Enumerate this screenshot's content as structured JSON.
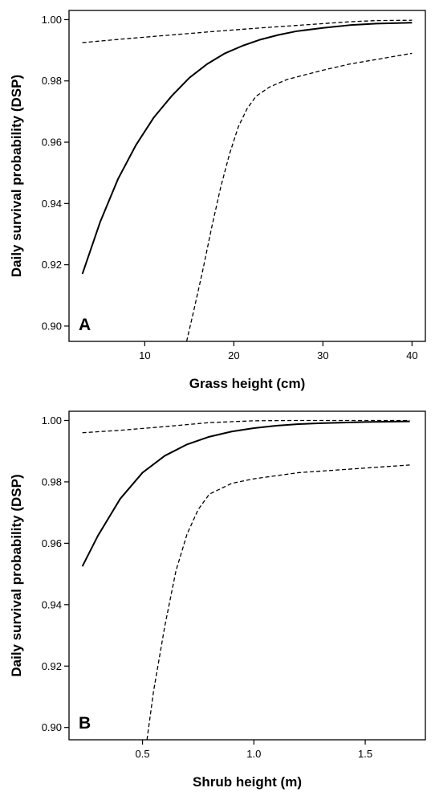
{
  "chart_data": [
    {
      "type": "line",
      "panel_label": "A",
      "xlabel": "Grass height (cm)",
      "ylabel": "Daily survival probability (DSP)",
      "xlim": [
        1.5,
        41.5
      ],
      "ylim": [
        0.895,
        1.003
      ],
      "xticks": [
        10,
        20,
        30,
        40
      ],
      "xtick_labels": [
        "10",
        "20",
        "30",
        "40"
      ],
      "yticks": [
        0.9,
        0.92,
        0.94,
        0.96,
        0.98,
        1.0
      ],
      "ytick_labels": [
        "0.90",
        "0.92",
        "0.94",
        "0.96",
        "0.98",
        "1.00"
      ],
      "grid": false,
      "series": [
        {
          "style": "solid",
          "x": [
            3,
            5,
            7,
            9,
            11,
            13,
            15,
            17,
            19,
            21,
            23,
            25,
            27,
            30,
            33,
            36,
            40
          ],
          "y": [
            0.917,
            0.934,
            0.948,
            0.959,
            0.968,
            0.975,
            0.981,
            0.9855,
            0.989,
            0.9915,
            0.9935,
            0.995,
            0.9962,
            0.9973,
            0.9982,
            0.9987,
            0.999
          ]
        },
        {
          "style": "dashed",
          "x": [
            3,
            8,
            13,
            18,
            23,
            28,
            33,
            36,
            40
          ],
          "y": [
            0.9925,
            0.9938,
            0.995,
            0.9962,
            0.9973,
            0.9983,
            0.9993,
            0.9997,
            0.9998
          ]
        },
        {
          "style": "dashed",
          "x": [
            14.7,
            15.5,
            16.5,
            17.5,
            18.5,
            19.5,
            20.5,
            21.5,
            22.5,
            24,
            26,
            28,
            30,
            33,
            36,
            40
          ],
          "y": [
            0.895,
            0.905,
            0.918,
            0.932,
            0.945,
            0.956,
            0.965,
            0.971,
            0.975,
            0.978,
            0.9805,
            0.982,
            0.9835,
            0.9855,
            0.987,
            0.989
          ]
        }
      ]
    },
    {
      "type": "line",
      "panel_label": "B",
      "xlabel": "Shrub height (m)",
      "ylabel": "Daily survival probability (DSP)",
      "xlim": [
        0.17,
        1.77
      ],
      "ylim": [
        0.896,
        1.003
      ],
      "xticks": [
        0.5,
        1.0,
        1.5
      ],
      "xtick_labels": [
        "0.5",
        "1.0",
        "1.5"
      ],
      "yticks": [
        0.9,
        0.92,
        0.94,
        0.96,
        0.98,
        1.0
      ],
      "ytick_labels": [
        "0.90",
        "0.92",
        "0.94",
        "0.96",
        "0.98",
        "1.00"
      ],
      "grid": false,
      "series": [
        {
          "style": "solid",
          "x": [
            0.23,
            0.3,
            0.4,
            0.5,
            0.6,
            0.7,
            0.8,
            0.9,
            1.0,
            1.1,
            1.2,
            1.3,
            1.4,
            1.5,
            1.6,
            1.7
          ],
          "y": [
            0.9525,
            0.9625,
            0.9745,
            0.983,
            0.9885,
            0.9922,
            0.9947,
            0.9964,
            0.9975,
            0.9983,
            0.9988,
            0.9991,
            0.9993,
            0.9995,
            0.9996,
            0.9997
          ]
        },
        {
          "style": "dashed",
          "x": [
            0.23,
            0.4,
            0.6,
            0.8,
            1.0,
            1.2,
            1.4,
            1.6,
            1.7
          ],
          "y": [
            0.996,
            0.9968,
            0.998,
            0.9993,
            0.9999,
            1.0,
            1.0,
            1.0,
            1.0
          ]
        },
        {
          "style": "dashed",
          "x": [
            0.52,
            0.55,
            0.6,
            0.65,
            0.7,
            0.75,
            0.8,
            0.9,
            1.0,
            1.1,
            1.2,
            1.4,
            1.6,
            1.7
          ],
          "y": [
            0.896,
            0.912,
            0.933,
            0.951,
            0.963,
            0.971,
            0.976,
            0.9795,
            0.981,
            0.982,
            0.983,
            0.984,
            0.985,
            0.9855
          ]
        }
      ]
    }
  ]
}
